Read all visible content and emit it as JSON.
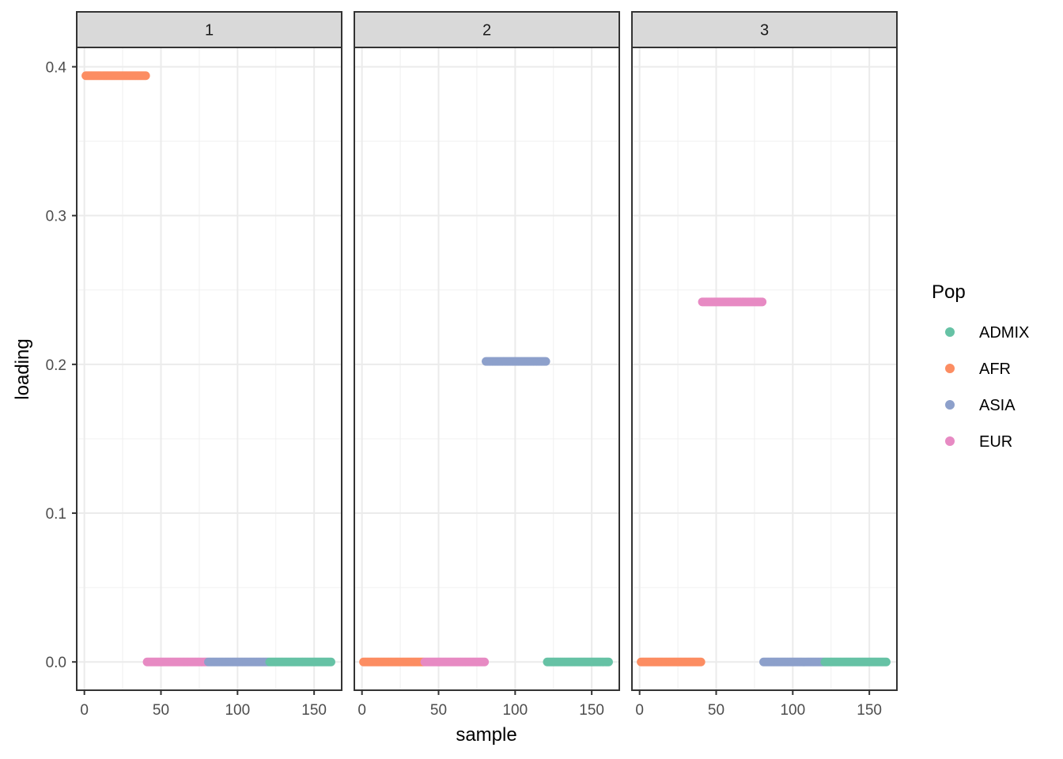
{
  "chart_data": {
    "type": "scatter",
    "xlabel": "sample",
    "ylabel": "loading",
    "xlim": [
      -5,
      168
    ],
    "ylim": [
      -0.019,
      0.413
    ],
    "x_ticks": [
      0,
      50,
      100,
      150
    ],
    "x_tick_labels": [
      "0",
      "50",
      "100",
      "150"
    ],
    "y_ticks": [
      0.0,
      0.1,
      0.2,
      0.3,
      0.4
    ],
    "y_tick_labels": [
      "0.0",
      "0.1",
      "0.2",
      "0.3",
      "0.4"
    ],
    "grid": true,
    "legend": {
      "title": "Pop",
      "position": "right",
      "entries": [
        {
          "name": "ADMIX",
          "color": "#66C2A5"
        },
        {
          "name": "AFR",
          "color": "#FC8D62"
        },
        {
          "name": "ASIA",
          "color": "#8DA0CB"
        },
        {
          "name": "EUR",
          "color": "#E78AC3"
        }
      ]
    },
    "facets": [
      {
        "label": "1",
        "series": [
          {
            "name": "AFR",
            "x_range": [
              1,
              40
            ],
            "y": 0.394
          },
          {
            "name": "EUR",
            "x_range": [
              41,
              80
            ],
            "y": 0.0
          },
          {
            "name": "ASIA",
            "x_range": [
              81,
              120
            ],
            "y": 0.0
          },
          {
            "name": "ADMIX",
            "x_range": [
              121,
              161
            ],
            "y": 0.0
          }
        ]
      },
      {
        "label": "2",
        "series": [
          {
            "name": "AFR",
            "x_range": [
              1,
              40
            ],
            "y": 0.0
          },
          {
            "name": "EUR",
            "x_range": [
              41,
              80
            ],
            "y": 0.0
          },
          {
            "name": "ASIA",
            "x_range": [
              81,
              120
            ],
            "y": 0.202
          },
          {
            "name": "ADMIX",
            "x_range": [
              121,
              161
            ],
            "y": 0.0
          }
        ]
      },
      {
        "label": "3",
        "series": [
          {
            "name": "AFR",
            "x_range": [
              1,
              40
            ],
            "y": 0.0
          },
          {
            "name": "EUR",
            "x_range": [
              41,
              80
            ],
            "y": 0.242
          },
          {
            "name": "ASIA",
            "x_range": [
              81,
              120
            ],
            "y": 0.0
          },
          {
            "name": "ADMIX",
            "x_range": [
              121,
              161
            ],
            "y": 0.0
          }
        ]
      }
    ]
  }
}
